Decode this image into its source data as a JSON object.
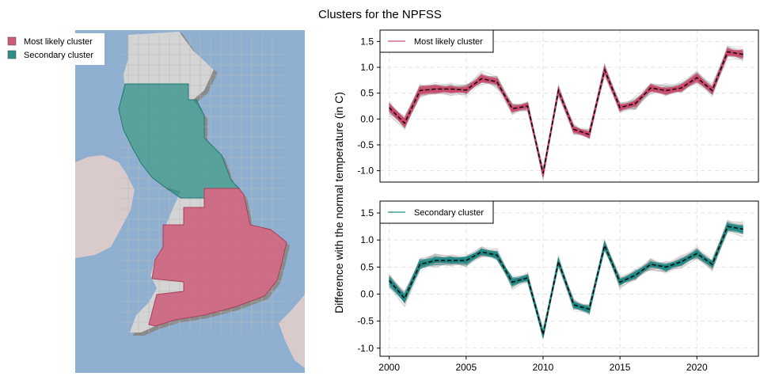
{
  "title": "Clusters for the NPFSS",
  "map": {
    "legend": [
      {
        "label": "Most likely cluster",
        "color": "#cc5a78"
      },
      {
        "label": "Secondary cluster",
        "color": "#2a8f86"
      }
    ],
    "colors": {
      "sea": "#8fafd0",
      "land": "#d9cbcb",
      "outside_grid": "#d4d4d4",
      "shadow": "#8a8a8a"
    }
  },
  "chart_data": [
    {
      "type": "line",
      "panel": "top",
      "legend": "Most likely cluster",
      "highlight_color": "#cc4a6c",
      "background_color": "#8f8f8f",
      "x": [
        2000,
        2001,
        2002,
        2003,
        2004,
        2005,
        2006,
        2007,
        2008,
        2009,
        2010,
        2011,
        2012,
        2013,
        2014,
        2015,
        2016,
        2017,
        2018,
        2019,
        2020,
        2021,
        2022,
        2023
      ],
      "national_mean": [
        0.22,
        -0.08,
        0.55,
        0.58,
        0.58,
        0.56,
        0.78,
        0.72,
        0.2,
        0.25,
        -1.05,
        0.55,
        -0.2,
        -0.3,
        0.95,
        0.22,
        0.3,
        0.6,
        0.55,
        0.6,
        0.8,
        0.55,
        1.3,
        1.25
      ],
      "xlim": [
        1999.4,
        2024
      ],
      "ylim": [
        -1.22,
        1.72
      ],
      "yticks": [
        -1.0,
        -0.5,
        0.0,
        0.5,
        1.0,
        1.5
      ],
      "xticks": [
        2000,
        2005,
        2010,
        2015,
        2020
      ],
      "grid": true,
      "legend_position": "top-left"
    },
    {
      "type": "line",
      "panel": "bottom",
      "legend": "Secondary cluster",
      "highlight_color": "#1f8a84",
      "background_color": "#8f8f8f",
      "x": [
        2000,
        2001,
        2002,
        2003,
        2004,
        2005,
        2006,
        2007,
        2008,
        2009,
        2010,
        2011,
        2012,
        2013,
        2014,
        2015,
        2016,
        2017,
        2018,
        2019,
        2020,
        2021,
        2022,
        2023
      ],
      "national_mean": [
        0.25,
        -0.08,
        0.55,
        0.62,
        0.62,
        0.62,
        0.78,
        0.72,
        0.22,
        0.3,
        -0.75,
        0.6,
        -0.2,
        -0.28,
        0.9,
        0.22,
        0.35,
        0.55,
        0.5,
        0.6,
        0.75,
        0.55,
        1.25,
        1.2
      ],
      "xlim": [
        1999.4,
        2024
      ],
      "ylim": [
        -1.15,
        1.72
      ],
      "yticks": [
        -1.0,
        -0.5,
        0.0,
        0.5,
        1.0,
        1.5
      ],
      "xticks": [
        2000,
        2005,
        2010,
        2015,
        2020
      ],
      "grid": true,
      "legend_position": "top-left"
    }
  ],
  "ylabel": "Difference with the normal temperature (in C)"
}
